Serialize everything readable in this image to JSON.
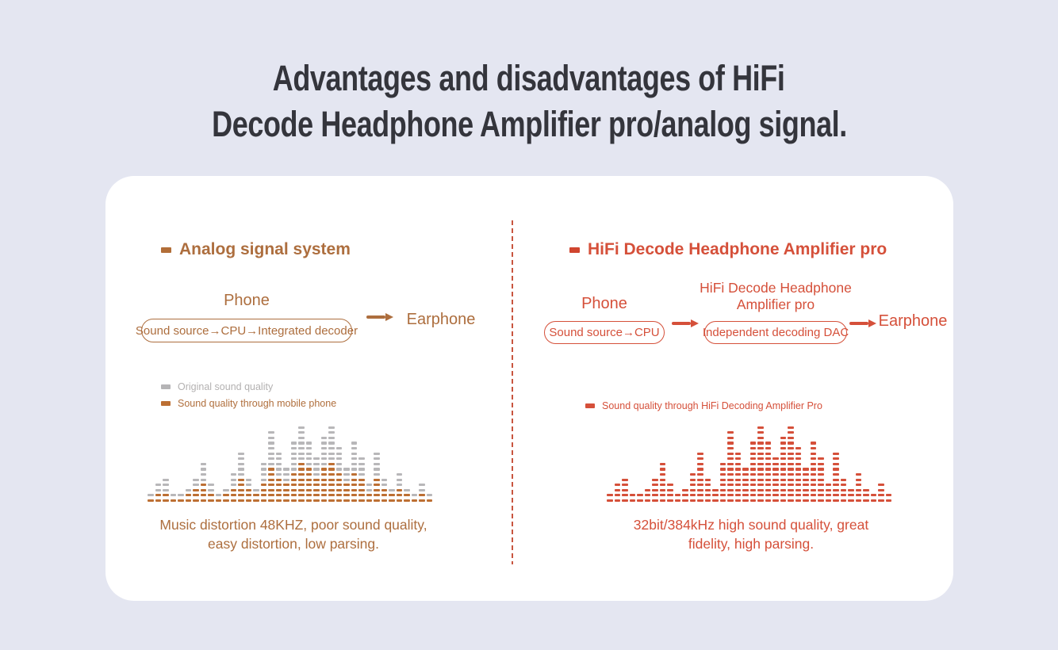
{
  "page": {
    "background": "#e4e6f1",
    "card_background": "#ffffff",
    "divider_color": "#c8553f"
  },
  "title": {
    "line1": "Advantages and disadvantages of HiFi",
    "line2": "Decode Headphone Amplifier pro/analog signal.",
    "color": "#34353c"
  },
  "left": {
    "accent": "#ad6e3e",
    "bullet_color": "#b26e38",
    "header": "Analog signal system",
    "phone_label": "Phone",
    "pill": "Sound source→CPU→Integrated decoder",
    "earphone_label": "Earphone",
    "legend": [
      {
        "label": "Original sound quality",
        "swatch_color": "#b5b4b6",
        "text_color": "#b3b1b1"
      },
      {
        "label": "Sound quality through mobile phone",
        "swatch_color": "#bc6f33",
        "text_color": "#b06f3d"
      }
    ],
    "caption_line1": "Music distortion 48KHZ, poor sound quality,",
    "caption_line2": "easy distortion, low parsing."
  },
  "right": {
    "accent": "#d5503a",
    "bullet_color": "#d0452f",
    "header": "HiFi Decode Headphone Amplifier pro",
    "phone_label": "Phone",
    "pill1": "Sound source→CPU",
    "device_label_line1": "HiFi Decode Headphone",
    "device_label_line2": "Amplifier pro",
    "pill2": "Independent decoding DAC",
    "earphone_label": "Earphone",
    "legend": [
      {
        "label": "Sound quality through HiFi Decoding Amplifier Pro",
        "swatch_color": "#d5503a",
        "text_color": "#d5503a"
      }
    ],
    "caption_line1": "32bit/384kHz high sound quality, great",
    "caption_line2": "fidelity, high parsing."
  },
  "chart_data": [
    {
      "type": "bar",
      "name": "analog-signal-equalizer",
      "title": "",
      "xlabel": "",
      "ylabel": "",
      "unit": "dash segments",
      "ylim": [
        0,
        15
      ],
      "grid": false,
      "legend_position": "top-left",
      "series": [
        {
          "name": "Original sound quality",
          "color": "#b8b7b9",
          "values": [
            2,
            4,
            5,
            2,
            2,
            3,
            5,
            8,
            4,
            2,
            3,
            6,
            10,
            5,
            3,
            8,
            14,
            10,
            7,
            12,
            15,
            12,
            9,
            13,
            15,
            11,
            7,
            12,
            9,
            4,
            10,
            5,
            3,
            6,
            3,
            2,
            4,
            2
          ]
        },
        {
          "name": "Sound quality through mobile phone",
          "color": "#bd6f33",
          "values": [
            1,
            2,
            2,
            1,
            1,
            2,
            3,
            4,
            2,
            1,
            2,
            3,
            5,
            3,
            2,
            4,
            7,
            5,
            4,
            6,
            8,
            7,
            5,
            7,
            8,
            6,
            4,
            6,
            5,
            2,
            5,
            3,
            2,
            3,
            2,
            1,
            2,
            1
          ]
        }
      ]
    },
    {
      "type": "bar",
      "name": "hifi-decode-equalizer",
      "title": "",
      "xlabel": "",
      "ylabel": "",
      "unit": "dash segments",
      "ylim": [
        0,
        15
      ],
      "grid": false,
      "legend_position": "top-left",
      "series": [
        {
          "name": "Sound quality through HiFi Decoding Amplifier Pro",
          "color": "#d5503a",
          "values": [
            2,
            4,
            5,
            2,
            2,
            3,
            5,
            8,
            4,
            2,
            3,
            6,
            10,
            5,
            3,
            8,
            14,
            10,
            7,
            12,
            15,
            12,
            9,
            13,
            15,
            11,
            7,
            12,
            9,
            4,
            10,
            5,
            3,
            6,
            3,
            2,
            4,
            2
          ]
        }
      ]
    }
  ]
}
